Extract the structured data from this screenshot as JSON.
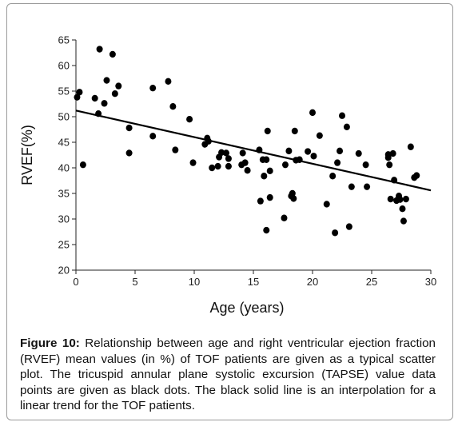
{
  "chart_data": {
    "type": "scatter",
    "xlabel": "Age (years)",
    "ylabel": "RVEF(%)",
    "xlim": [
      0,
      30
    ],
    "ylim": [
      20,
      65
    ],
    "xticks": [
      0,
      5,
      10,
      15,
      20,
      25,
      30
    ],
    "yticks": [
      20,
      25,
      30,
      35,
      40,
      45,
      50,
      55,
      60,
      65
    ],
    "grid": false,
    "points": [
      [
        0.1,
        53.8
      ],
      [
        0.3,
        54.8
      ],
      [
        0.6,
        40.6
      ],
      [
        1.6,
        53.6
      ],
      [
        1.9,
        50.6
      ],
      [
        2.0,
        63.2
      ],
      [
        2.4,
        52.6
      ],
      [
        2.6,
        57.1
      ],
      [
        3.1,
        62.2
      ],
      [
        3.3,
        54.5
      ],
      [
        3.6,
        56.0
      ],
      [
        4.5,
        47.8
      ],
      [
        4.5,
        42.9
      ],
      [
        6.5,
        55.6
      ],
      [
        6.5,
        46.2
      ],
      [
        7.8,
        56.9
      ],
      [
        8.2,
        52.0
      ],
      [
        8.4,
        43.5
      ],
      [
        9.6,
        49.5
      ],
      [
        9.9,
        41.0
      ],
      [
        10.9,
        44.6
      ],
      [
        11.1,
        45.8
      ],
      [
        11.2,
        45.2
      ],
      [
        11.5,
        40.0
      ],
      [
        12.0,
        40.3
      ],
      [
        12.1,
        42.1
      ],
      [
        12.3,
        43.0
      ],
      [
        12.7,
        42.9
      ],
      [
        12.9,
        41.8
      ],
      [
        12.9,
        40.3
      ],
      [
        14.0,
        40.6
      ],
      [
        14.1,
        42.9
      ],
      [
        14.5,
        39.5
      ],
      [
        14.3,
        41.0
      ],
      [
        15.5,
        43.5
      ],
      [
        15.6,
        33.5
      ],
      [
        15.8,
        41.6
      ],
      [
        15.9,
        38.4
      ],
      [
        16.1,
        41.6
      ],
      [
        16.2,
        47.2
      ],
      [
        16.1,
        27.8
      ],
      [
        16.4,
        39.4
      ],
      [
        16.4,
        34.2
      ],
      [
        17.6,
        30.2
      ],
      [
        17.7,
        40.6
      ],
      [
        18.0,
        43.3
      ],
      [
        18.2,
        34.5
      ],
      [
        18.3,
        35.0
      ],
      [
        18.4,
        34.0
      ],
      [
        18.5,
        47.2
      ],
      [
        18.6,
        41.5
      ],
      [
        18.9,
        41.6
      ],
      [
        19.6,
        43.2
      ],
      [
        20.0,
        50.8
      ],
      [
        20.1,
        42.3
      ],
      [
        20.6,
        46.3
      ],
      [
        21.2,
        32.9
      ],
      [
        21.7,
        38.4
      ],
      [
        21.9,
        27.3
      ],
      [
        22.1,
        41.0
      ],
      [
        22.3,
        43.3
      ],
      [
        22.5,
        50.2
      ],
      [
        22.9,
        48.0
      ],
      [
        23.1,
        28.5
      ],
      [
        23.3,
        36.3
      ],
      [
        23.9,
        42.8
      ],
      [
        24.5,
        40.6
      ],
      [
        24.6,
        36.3
      ],
      [
        26.4,
        42.6
      ],
      [
        26.4,
        42.0
      ],
      [
        26.5,
        40.6
      ],
      [
        26.6,
        33.9
      ],
      [
        26.8,
        42.8
      ],
      [
        26.9,
        37.6
      ],
      [
        27.1,
        33.6
      ],
      [
        27.3,
        34.5
      ],
      [
        27.4,
        33.8
      ],
      [
        27.6,
        32.0
      ],
      [
        27.7,
        29.6
      ],
      [
        27.9,
        33.9
      ],
      [
        28.3,
        44.1
      ],
      [
        28.6,
        38.1
      ],
      [
        28.8,
        38.5
      ]
    ],
    "trendline": {
      "x": [
        0,
        30
      ],
      "y": [
        51.2,
        35.6
      ]
    },
    "colors": {
      "points": "#000000",
      "trendline": "#000000",
      "axes": "#222222"
    }
  },
  "caption": {
    "label": "Figure 10:",
    "text": " Relationship between age and right ventricular ejection fraction (RVEF) mean values (in %) of TOF patients are given as a typical scatter plot. The tricuspid annular plane systolic excursion (TAPSE) value data points are given as black dots. The black solid line is an interpolation for a linear trend for the TOF patients."
  }
}
